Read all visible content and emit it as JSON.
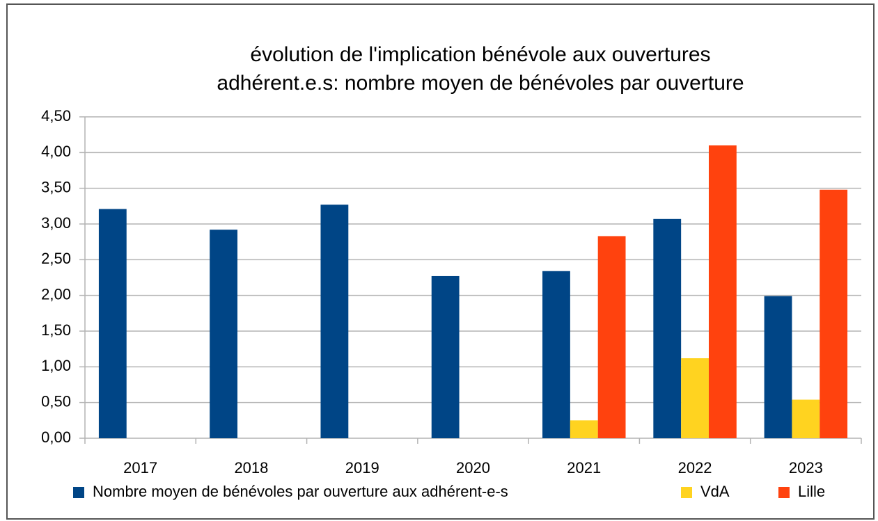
{
  "chart_data": {
    "type": "bar",
    "title": [
      "évolution de l'implication bénévole aux ouvertures",
      "adhérent.e.s: nombre moyen de bénévoles par ouverture"
    ],
    "categories": [
      "2017",
      "2018",
      "2019",
      "2020",
      "2021",
      "2022",
      "2023"
    ],
    "series": [
      {
        "name": "Nombre moyen de bénévoles par ouverture aux adhérent-e-s",
        "color": "#004586",
        "values": [
          3.21,
          2.92,
          3.27,
          2.27,
          2.34,
          3.07,
          1.99
        ]
      },
      {
        "name": "VdA",
        "color": "#ffd320",
        "values": [
          null,
          null,
          null,
          null,
          0.25,
          1.12,
          0.54
        ]
      },
      {
        "name": "Lille",
        "color": "#ff420e",
        "values": [
          null,
          null,
          null,
          null,
          2.83,
          4.1,
          3.48
        ]
      }
    ],
    "ylim": [
      0,
      4.5
    ],
    "yticks": [
      {
        "value": 0,
        "label": "0,00"
      },
      {
        "value": 0.5,
        "label": "0,50"
      },
      {
        "value": 1,
        "label": "1,00"
      },
      {
        "value": 1.5,
        "label": "1,50"
      },
      {
        "value": 2,
        "label": "2,00"
      },
      {
        "value": 2.5,
        "label": "2,50"
      },
      {
        "value": 3,
        "label": "3,00"
      },
      {
        "value": 3.5,
        "label": "3,50"
      },
      {
        "value": 4,
        "label": "4,00"
      },
      {
        "value": 4.5,
        "label": "4,50"
      }
    ],
    "grid": true,
    "legend": "bottom"
  }
}
